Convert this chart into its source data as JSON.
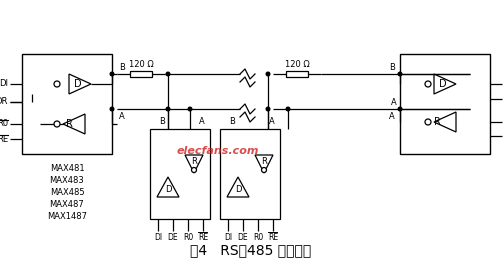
{
  "title": "图4   RS－485 多机通信",
  "bg_color": "#ffffff",
  "line_color": "#000000",
  "watermark_color": "#cc2222",
  "watermark_text": "elecfans.com",
  "chip_labels_left": [
    "MAX481",
    "MAX483",
    "MAX485",
    "MAX487",
    "MAX1487"
  ],
  "resistor_label": "120 Ω",
  "bottom_pins": [
    "DI",
    "DE",
    "R0",
    "RE"
  ]
}
